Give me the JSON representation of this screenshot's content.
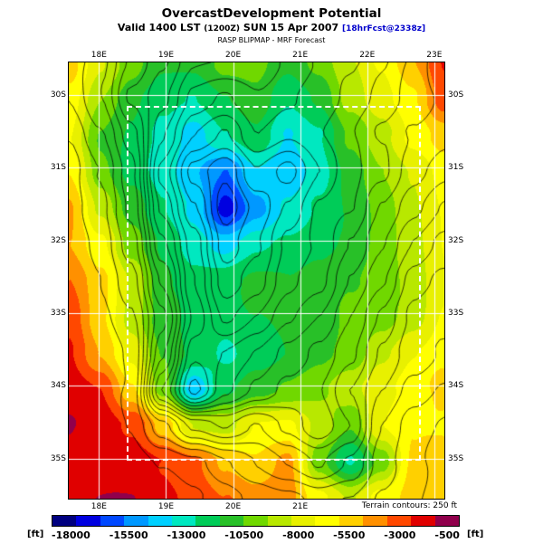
{
  "header": {
    "title": "OvercastDevelopment Potential",
    "valid_prefix": "Valid 1400 LST",
    "valid_zulu": "(1200Z)",
    "valid_date": "SUN 15 Apr 2007",
    "forecast_tag": "[18hrFcst@2338z]",
    "model_line": "RASP BLIPMAP - MRF Forecast"
  },
  "map": {
    "top_ticks": [
      "18E",
      "19E",
      "20E",
      "21E",
      "22E",
      "23E"
    ],
    "bottom_ticks": [
      "18E",
      "19E",
      "20E",
      "21E"
    ],
    "left_ticks": [
      "30S",
      "31S",
      "32S",
      "33S",
      "34S",
      "35S"
    ],
    "right_ticks": [
      "30S",
      "31S",
      "32S",
      "33S",
      "34S",
      "35S"
    ]
  },
  "footer": {
    "terrain_note": "Terrain contours: 250 ft"
  },
  "colorbar": {
    "unit": "[ft]",
    "tick_labels": [
      "-18000",
      "-15500",
      "-13000",
      "-10500",
      "-8000",
      "-5500",
      "-3000",
      "-500"
    ]
  },
  "chart_data": {
    "type": "heatmap",
    "title": "OvercastDevelopment Potential",
    "subtitle": "Valid 1400 LST (1200Z) SUN 15 Apr 2007 [18hrFcst@2338z]",
    "source": "RASP BLIPMAP - MRF Forecast",
    "units": "ft",
    "lon_range": [
      17.55,
      23.15
    ],
    "lat_range": [
      29.55,
      35.55
    ],
    "tick_lons": [
      18,
      19,
      20,
      21,
      22,
      23
    ],
    "tick_lats": [
      30,
      31,
      32,
      33,
      34,
      35
    ],
    "x_tick_labels": [
      "18E",
      "19E",
      "20E",
      "21E",
      "22E",
      "23E"
    ],
    "y_tick_labels": [
      "30S",
      "31S",
      "32S",
      "33S",
      "34S",
      "35S"
    ],
    "value_range": [
      -18000,
      -500
    ],
    "colorbar_ticks": [
      -18000,
      -15500,
      -13000,
      -10500,
      -8000,
      -5500,
      -3000,
      -500
    ],
    "fill_colors": [
      "#000080",
      "#0000e0",
      "#0048ff",
      "#0098ff",
      "#00d0ff",
      "#00e8c0",
      "#00cc58",
      "#28c028",
      "#70d800",
      "#b8e800",
      "#e8f000",
      "#ffff00",
      "#ffd000",
      "#ff9000",
      "#ff4800",
      "#e00000",
      "#90004c"
    ],
    "grid_shape": [
      13,
      13
    ],
    "values_ft": [
      [
        -5500,
        -8000,
        -9500,
        -10500,
        -10500,
        -9500,
        -9500,
        -10500,
        -9500,
        -8000,
        -6500,
        -4500,
        -2500
      ],
      [
        -6500,
        -9000,
        -10500,
        -11500,
        -12000,
        -11000,
        -10000,
        -11500,
        -10500,
        -8000,
        -6500,
        -5500,
        -3000
      ],
      [
        -6500,
        -9500,
        -10500,
        -12000,
        -13500,
        -12000,
        -11000,
        -13000,
        -12000,
        -9500,
        -8000,
        -6500,
        -5500
      ],
      [
        -5500,
        -9000,
        -11000,
        -12500,
        -14000,
        -15000,
        -13000,
        -14000,
        -12500,
        -10500,
        -9000,
        -8000,
        -6500
      ],
      [
        -4500,
        -8000,
        -10500,
        -12000,
        -13000,
        -16000,
        -14000,
        -12500,
        -11500,
        -10500,
        -9500,
        -8000,
        -6500
      ],
      [
        -4500,
        -6500,
        -9500,
        -11000,
        -12000,
        -13000,
        -12000,
        -11500,
        -11000,
        -10500,
        -9500,
        -8000,
        -6500
      ],
      [
        -3500,
        -5500,
        -8000,
        -10500,
        -11500,
        -11500,
        -11000,
        -11000,
        -10500,
        -10000,
        -9500,
        -8000,
        -6500
      ],
      [
        -3000,
        -5500,
        -8000,
        -10000,
        -11000,
        -11500,
        -11000,
        -10500,
        -10500,
        -9500,
        -9000,
        -8000,
        -6500
      ],
      [
        -2500,
        -4500,
        -6500,
        -9500,
        -11000,
        -12000,
        -11000,
        -10500,
        -10000,
        -9500,
        -8000,
        -7000,
        -6500
      ],
      [
        -2000,
        -2500,
        -5500,
        -9500,
        -14000,
        -11000,
        -10000,
        -9500,
        -9000,
        -8000,
        -7000,
        -6500,
        -5500
      ],
      [
        -1500,
        -2000,
        -3000,
        -5500,
        -8000,
        -8000,
        -6500,
        -6500,
        -8000,
        -9500,
        -6500,
        -5500,
        -5500
      ],
      [
        -1500,
        -1500,
        -2000,
        -2500,
        -3000,
        -4500,
        -5500,
        -4500,
        -9500,
        -12000,
        -9500,
        -5500,
        -4500
      ],
      [
        -2000,
        -1500,
        -1500,
        -2000,
        -2500,
        -3500,
        -4500,
        -4500,
        -6500,
        -8000,
        -6500,
        -5500,
        -5500
      ]
    ],
    "terrain_ft": [
      [
        500,
        800,
        1500,
        2000,
        2500,
        2500,
        2500,
        2800,
        3000,
        3000,
        2800,
        2500,
        2000
      ],
      [
        400,
        900,
        1800,
        2200,
        2800,
        3000,
        2800,
        3000,
        3200,
        3000,
        2800,
        2500,
        2200
      ],
      [
        300,
        800,
        1500,
        2500,
        3200,
        3500,
        3000,
        3200,
        3000,
        2800,
        2500,
        2200,
        2000
      ],
      [
        200,
        600,
        1200,
        2800,
        3800,
        4200,
        3500,
        3800,
        3200,
        2800,
        2500,
        2000,
        1800
      ],
      [
        150,
        400,
        1000,
        2500,
        3500,
        4500,
        4000,
        3500,
        3000,
        2800,
        2200,
        1800,
        1500
      ],
      [
        100,
        300,
        800,
        2200,
        3200,
        4200,
        3800,
        3200,
        3000,
        2500,
        2000,
        1500,
        1200
      ],
      [
        80,
        200,
        600,
        1800,
        3000,
        3800,
        3500,
        3000,
        2800,
        2200,
        1800,
        1200,
        1000
      ],
      [
        60,
        150,
        500,
        1500,
        2800,
        3500,
        3200,
        2800,
        2500,
        2000,
        1500,
        1000,
        800
      ],
      [
        40,
        100,
        400,
        1800,
        3200,
        3000,
        2800,
        2500,
        2200,
        1800,
        1200,
        800,
        600
      ],
      [
        20,
        80,
        300,
        2200,
        3500,
        2800,
        2500,
        2200,
        2000,
        1500,
        1000,
        600,
        400
      ],
      [
        10,
        50,
        200,
        800,
        1500,
        1800,
        1500,
        1800,
        2200,
        1800,
        800,
        400,
        300
      ],
      [
        5,
        20,
        100,
        300,
        500,
        800,
        1000,
        1200,
        1500,
        1200,
        600,
        300,
        200
      ],
      [
        0,
        10,
        50,
        150,
        300,
        400,
        500,
        600,
        800,
        700,
        400,
        250,
        150
      ]
    ],
    "terrain_contour_interval_ft": 250,
    "terrain_contour_max_ft": 4500,
    "inner_domain_box": {
      "lon": [
        18.42,
        22.8
      ],
      "lat": [
        30.15,
        35.03
      ]
    }
  }
}
